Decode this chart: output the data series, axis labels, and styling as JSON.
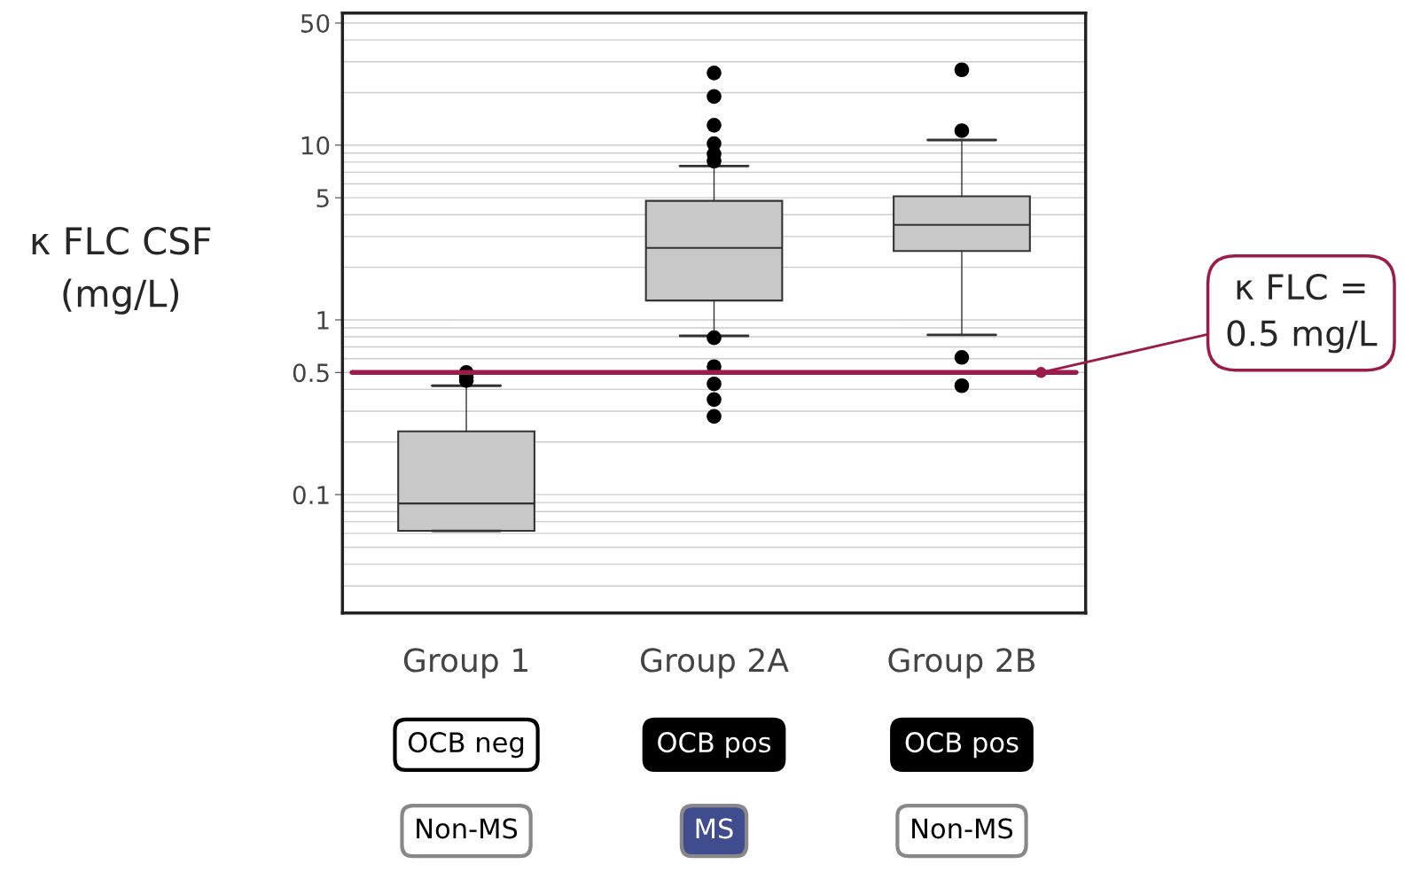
{
  "chart_data": {
    "type": "box",
    "ylabel": "κ FLC CSF\n(mg/L)",
    "categories": [
      "Group 1",
      "Group 2A",
      "Group 2B"
    ],
    "boxes": [
      {
        "low": 0.062,
        "q1": 0.062,
        "median": 0.089,
        "q3": 0.23,
        "high": 0.42,
        "outliers": [
          0.45,
          0.47,
          0.5
        ]
      },
      {
        "low": 0.81,
        "q1": 1.29,
        "median": 2.58,
        "q3": 4.8,
        "high": 7.6,
        "outliers": [
          25.9,
          19,
          13,
          10.2,
          8.9,
          8.1,
          0.79,
          0.54,
          0.43,
          0.35,
          0.28
        ]
      },
      {
        "low": 0.82,
        "q1": 2.48,
        "median": 3.5,
        "q3": 5.1,
        "high": 10.7,
        "outliers": [
          27,
          12.1,
          0.61,
          0.42
        ]
      }
    ],
    "color": "#c8c8c8",
    "log": true,
    "ylim": [
      0.021,
      57
    ],
    "yticks": [
      0.1,
      0.5,
      1,
      5,
      10,
      50
    ],
    "grid": "y",
    "ref_lines": [
      {
        "axis": "y",
        "value": 0.5,
        "label": "κ FLC =\n0.5 mg/L",
        "color": "#9b1b4a"
      }
    ],
    "annotations": [
      "OCB neg",
      "OCB pos",
      "OCB pos",
      "Non-MS",
      "MS",
      "Non-MS"
    ]
  }
}
